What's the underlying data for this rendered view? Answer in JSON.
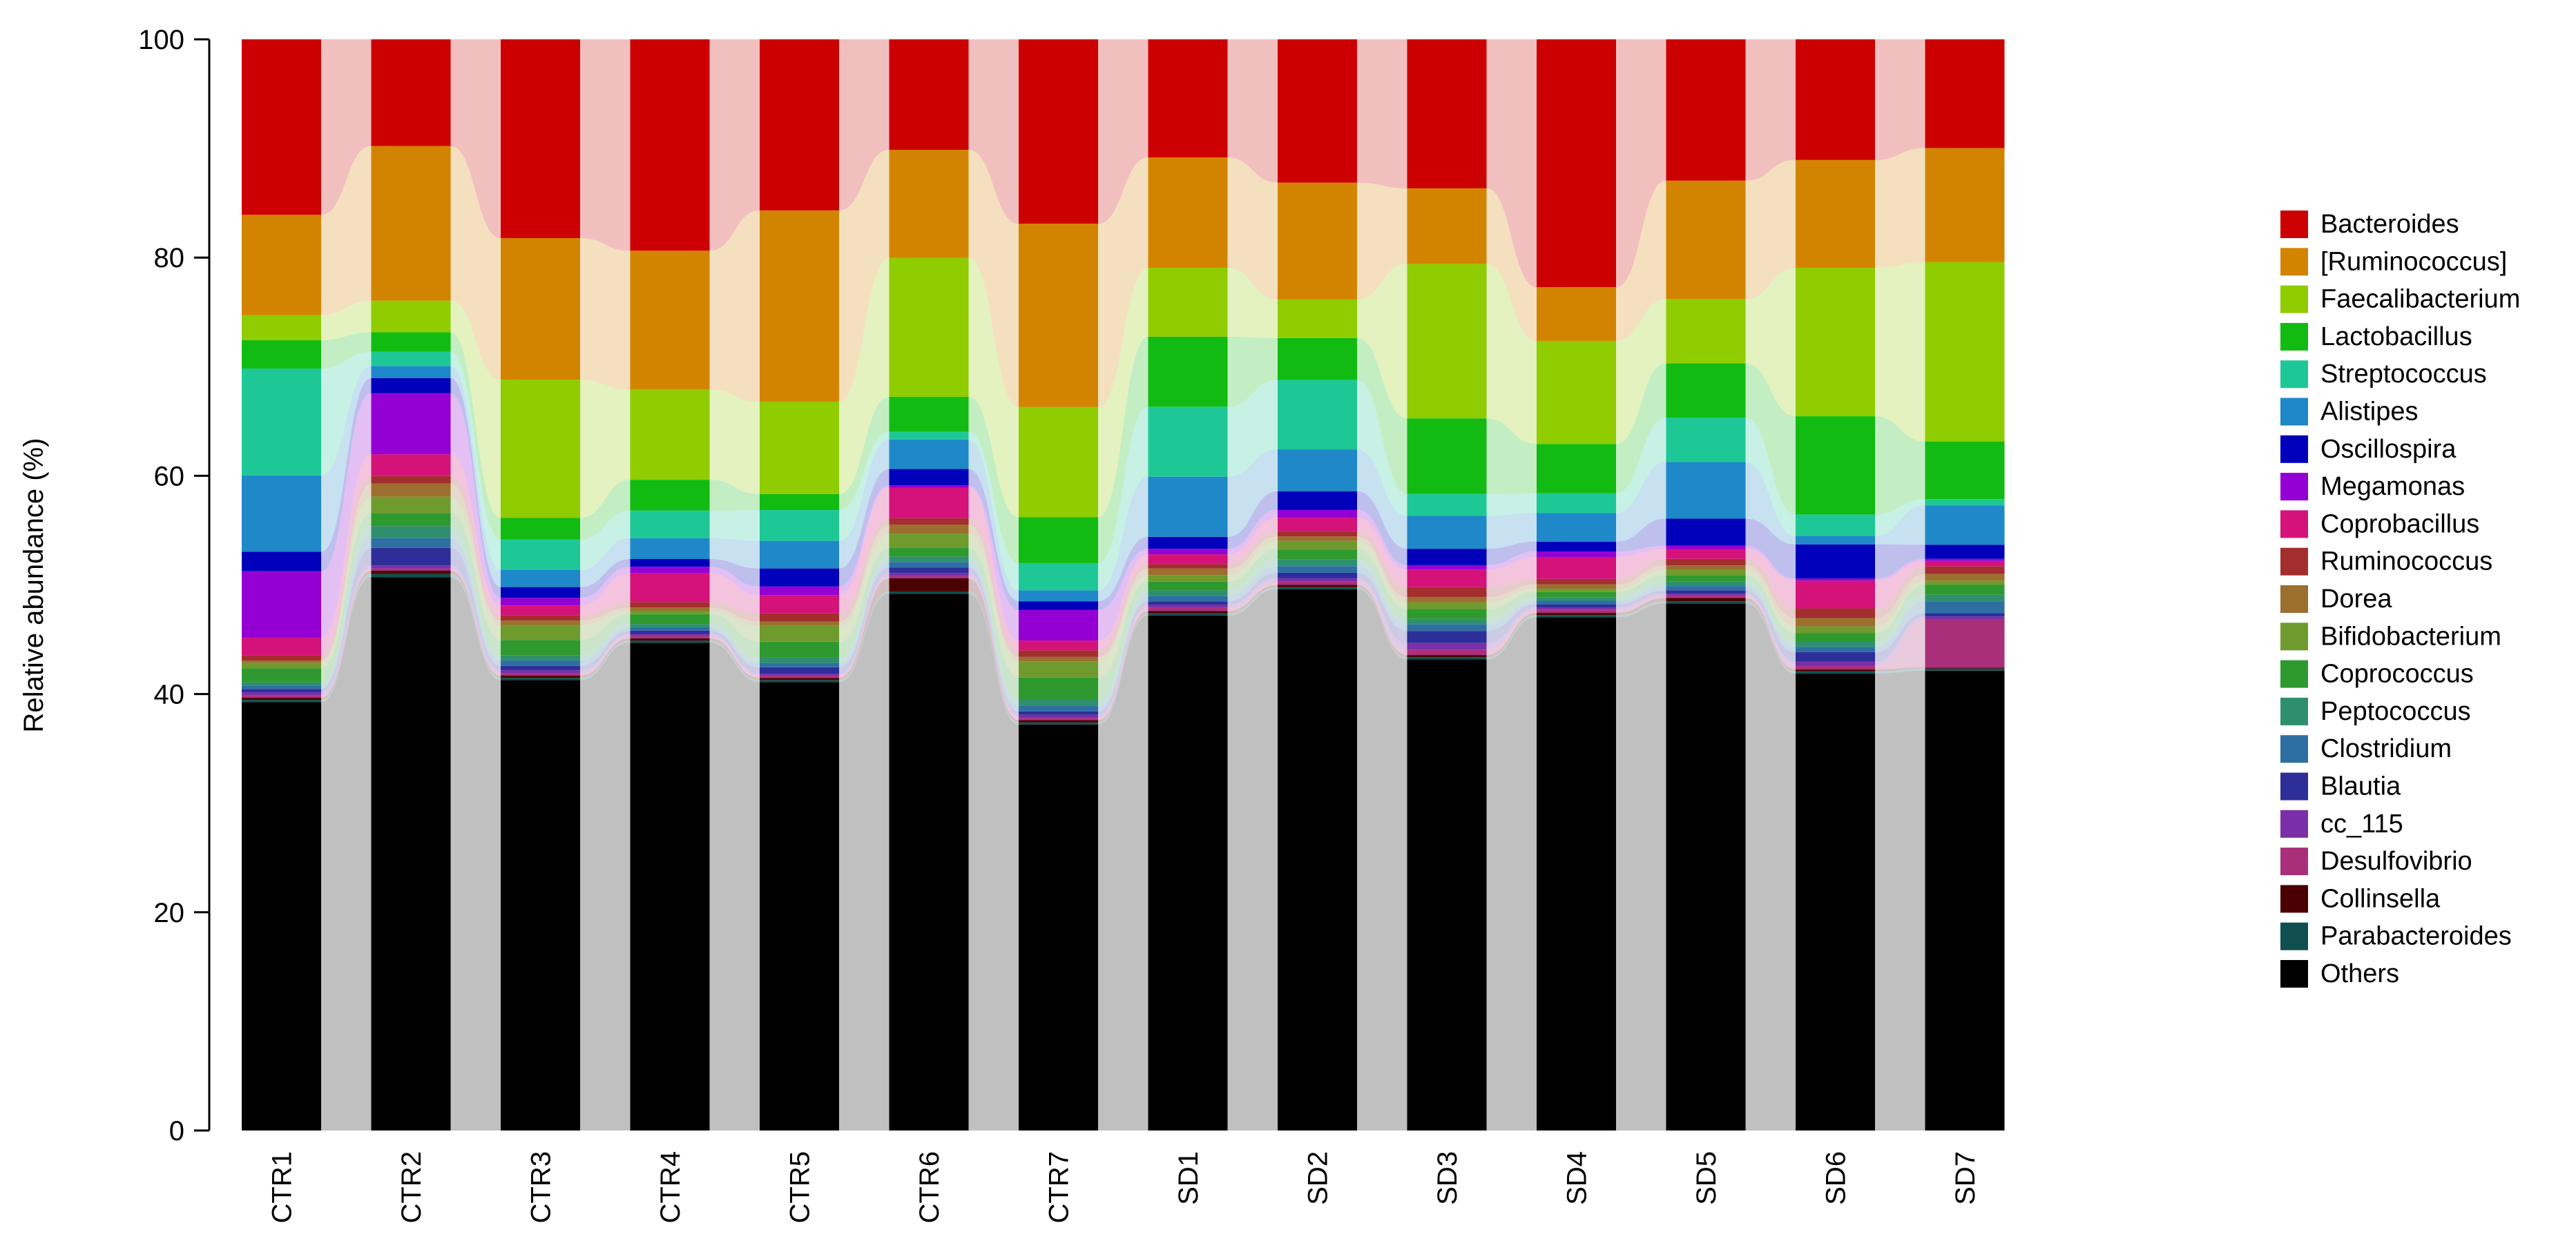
{
  "chart_data": {
    "type": "bar",
    "stacked": true,
    "flow_bands": true,
    "title": "",
    "xlabel": "",
    "ylabel": "Relative abundance (%)",
    "ylim": [
      0,
      100
    ],
    "yticks": [
      0,
      20,
      40,
      60,
      80,
      100
    ],
    "legend_position": "right",
    "categories": [
      "CTR1",
      "CTR2",
      "CTR3",
      "CTR4",
      "CTR5",
      "CTR6",
      "CTR7",
      "SD1",
      "SD2",
      "SD3",
      "SD4",
      "SD5",
      "SD6",
      "SD7"
    ],
    "series": [
      {
        "name": "Others",
        "color": "#000000",
        "values": [
          39.3,
          50.8,
          41.7,
          44.3,
          42.2,
          49.1,
          37.2,
          47.1,
          49.1,
          43.0,
          46.8,
          48.5,
          42.8,
          42.3
        ]
      },
      {
        "name": "Parabacteroides",
        "color": "#0f4f4f",
        "values": [
          0.2,
          0.3,
          0.2,
          0.2,
          0.2,
          0.2,
          0.2,
          0.2,
          0.2,
          0.2,
          0.2,
          0.2,
          0.2,
          0.2
        ]
      },
      {
        "name": "Collinsella",
        "color": "#4a0000",
        "values": [
          0.2,
          0.3,
          0.2,
          0.2,
          0.2,
          1.2,
          0.2,
          0.2,
          0.2,
          0.2,
          0.2,
          0.3,
          0.2,
          0.1
        ]
      },
      {
        "name": "Desulfovibrio",
        "color": "#aa2f7a",
        "values": [
          0.2,
          0.2,
          0.2,
          0.2,
          0.2,
          0.2,
          0.2,
          0.3,
          0.3,
          0.5,
          0.3,
          0.2,
          0.3,
          4.4
        ]
      },
      {
        "name": "cc_115",
        "color": "#7a2fa8",
        "values": [
          0.3,
          0.3,
          0.3,
          0.2,
          0.2,
          0.3,
          0.3,
          0.3,
          0.3,
          0.6,
          0.2,
          0.2,
          0.4,
          0.3
        ]
      },
      {
        "name": "Blautia",
        "color": "#2e2e99",
        "values": [
          0.3,
          1.6,
          0.4,
          0.3,
          0.6,
          0.5,
          0.3,
          0.3,
          0.5,
          1.1,
          0.3,
          0.3,
          0.9,
          0.3
        ]
      },
      {
        "name": "Clostridium",
        "color": "#2e6fa3",
        "values": [
          0.3,
          0.9,
          0.5,
          0.3,
          0.4,
          0.5,
          0.5,
          0.5,
          0.6,
          0.6,
          0.3,
          0.4,
          0.5,
          1.1
        ]
      },
      {
        "name": "Peptococcus",
        "color": "#2e8f6f",
        "values": [
          0.3,
          1.1,
          0.5,
          0.3,
          0.5,
          0.5,
          0.6,
          0.5,
          0.6,
          0.5,
          0.3,
          0.4,
          0.5,
          0.6
        ]
      },
      {
        "name": "Coprococcus",
        "color": "#2e992e",
        "values": [
          1.3,
          1.2,
          1.4,
          0.9,
          1.5,
          0.8,
          2.0,
          0.8,
          0.9,
          0.9,
          0.5,
          0.6,
          0.8,
          0.9
        ]
      },
      {
        "name": "Bifidobacterium",
        "color": "#6f9a2e",
        "values": [
          0.5,
          1.5,
          1.4,
          0.3,
          1.5,
          1.3,
          1.5,
          0.6,
          0.8,
          0.6,
          0.3,
          0.5,
          0.6,
          0.4
        ]
      },
      {
        "name": "Dorea",
        "color": "#9c6f2e",
        "values": [
          0.2,
          1.2,
          0.4,
          0.3,
          0.4,
          0.8,
          0.4,
          0.6,
          0.4,
          0.5,
          0.4,
          0.4,
          0.8,
          0.6
        ]
      },
      {
        "name": "Ruminococcus",
        "color": "#a32e2e",
        "values": [
          0.5,
          0.7,
          0.5,
          0.5,
          0.8,
          0.6,
          0.6,
          0.4,
          0.5,
          0.9,
          0.5,
          0.6,
          0.9,
          0.7
        ]
      },
      {
        "name": "Coprobacillus",
        "color": "#d4127a",
        "values": [
          1.6,
          2.0,
          0.9,
          2.6,
          1.7,
          2.8,
          0.9,
          0.9,
          1.2,
          1.6,
          2.0,
          0.9,
          2.6,
          0.5
        ]
      },
      {
        "name": "Megamonas",
        "color": "#9400d3",
        "values": [
          6.1,
          5.6,
          0.7,
          0.6,
          0.8,
          0.2,
          2.8,
          0.5,
          0.7,
          0.4,
          0.5,
          0.3,
          0.2,
          0.2
        ]
      },
      {
        "name": "Oscillospira",
        "color": "#0000bb",
        "values": [
          1.8,
          1.4,
          1.0,
          0.7,
          1.7,
          1.5,
          0.8,
          1.1,
          1.7,
          1.5,
          0.9,
          2.5,
          3.2,
          1.3
        ]
      },
      {
        "name": "Alistipes",
        "color": "#1e88c8",
        "values": [
          7.0,
          1.1,
          1.6,
          1.9,
          2.6,
          2.7,
          1.0,
          5.5,
          3.8,
          3.0,
          2.6,
          5.2,
          0.8,
          3.6
        ]
      },
      {
        "name": "Streptococcus",
        "color": "#1ec896",
        "values": [
          9.8,
          1.3,
          2.8,
          2.5,
          2.9,
          0.7,
          2.5,
          6.4,
          6.3,
          2.0,
          1.8,
          4.1,
          2.0,
          0.6
        ]
      },
      {
        "name": "Lactobacillus",
        "color": "#11bb11",
        "values": [
          2.6,
          1.8,
          2.0,
          2.8,
          1.5,
          3.2,
          4.2,
          6.4,
          3.8,
          6.9,
          4.5,
          5.0,
          9.2,
          5.3
        ]
      },
      {
        "name": "Faecalibacterium",
        "color": "#8fcc00",
        "values": [
          2.3,
          2.9,
          12.8,
          8.2,
          8.7,
          12.7,
          10.1,
          6.3,
          3.5,
          14.1,
          9.4,
          5.9,
          13.9,
          16.5
        ]
      },
      {
        "name": "[Ruminococcus]",
        "color": "#d28400",
        "values": [
          9.2,
          14.2,
          13.1,
          12.6,
          18.0,
          9.9,
          16.8,
          10.1,
          10.6,
          6.9,
          4.9,
          10.9,
          10.1,
          10.5
        ]
      },
      {
        "name": "Bacteroides",
        "color": "#cc0000",
        "values": [
          16.1,
          9.8,
          18.4,
          19.2,
          16.1,
          10.1,
          16.9,
          10.8,
          13.0,
          13.6,
          22.6,
          13.0,
          11.3,
          10.0
        ]
      }
    ]
  }
}
